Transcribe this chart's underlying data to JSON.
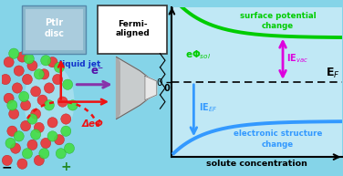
{
  "fig_width": 3.76,
  "fig_height": 1.89,
  "dpi": 100,
  "left_bg_color": "#85d4e8",
  "right_bg_color": "#c0e8f5",
  "ptlr_text": "PtIr\ndisc",
  "fermi_text": "Fermi-\naligned",
  "liquid_jet_text": "liquid jet",
  "electron_text": "e⁻",
  "delta_text": "ΔeΦ",
  "curve_green_label": "surface potential\nchange",
  "curve_blue_label": "electronic structure\nchange",
  "ephi_sol_label": "eΦ$_{sol}$",
  "ievac_label": "IE$_{vac}$",
  "ieef_label": "IE$_{EF}$",
  "ef_label": "E$_F$",
  "xaxis_label": "solute concentration",
  "green_color": "#00cc00",
  "blue_color": "#3399ff",
  "magenta_color": "#dd00dd",
  "red_color": "#ee1111"
}
